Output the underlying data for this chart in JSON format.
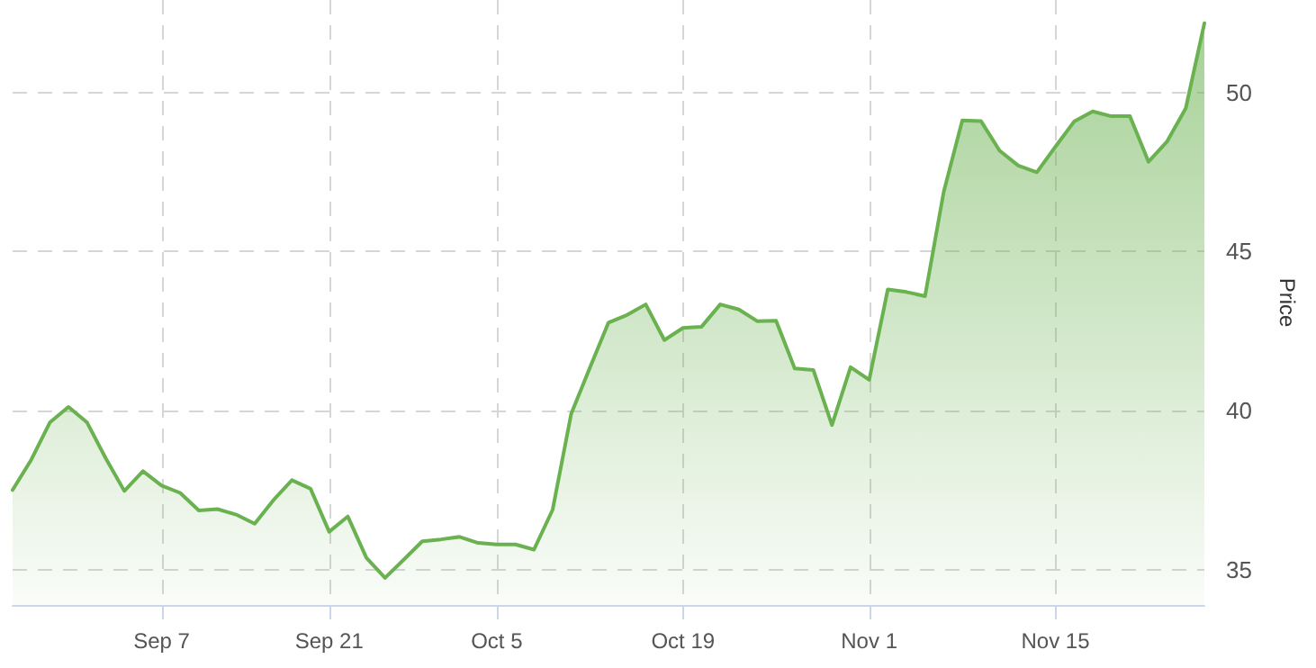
{
  "chart_data": {
    "type": "area",
    "ylabel": "Price",
    "categories": [
      null,
      null,
      null,
      null,
      null,
      null,
      null,
      null,
      "Sep 7",
      null,
      null,
      null,
      null,
      null,
      null,
      null,
      null,
      "Sep 21",
      null,
      null,
      null,
      null,
      null,
      null,
      null,
      null,
      "Oct 5",
      null,
      null,
      null,
      null,
      null,
      null,
      null,
      null,
      null,
      "Oct 19",
      null,
      null,
      null,
      null,
      null,
      null,
      null,
      null,
      null,
      "Nov 1",
      null,
      null,
      null,
      null,
      null,
      null,
      null,
      null,
      null,
      "Nov 15",
      null,
      null,
      null,
      null,
      null,
      null,
      null,
      null
    ],
    "series": [
      {
        "color": "#6ab150",
        "values": [
          37.51,
          38.46,
          39.63,
          40.12,
          39.63,
          38.51,
          37.48,
          38.1,
          37.65,
          37.42,
          36.87,
          36.91,
          36.74,
          36.45,
          37.19,
          37.82,
          37.55,
          36.2,
          36.68,
          35.38,
          34.75,
          35.32,
          35.9,
          35.96,
          36.04,
          35.85,
          35.8,
          35.8,
          35.64,
          36.89,
          39.91,
          41.35,
          42.77,
          43.01,
          43.34,
          42.22,
          42.6,
          42.64,
          43.34,
          43.18,
          42.81,
          42.83,
          41.33,
          41.28,
          39.55,
          41.37,
          40.97,
          43.81,
          43.73,
          43.6,
          46.87,
          49.12,
          49.1,
          48.17,
          47.7,
          47.49,
          48.29,
          49.08,
          49.4,
          49.25,
          49.25,
          47.82,
          48.46,
          49.5,
          52.17
        ]
      }
    ],
    "ylim": [
      33.9,
      52.9
    ],
    "yticks": [
      35,
      40,
      45,
      50
    ],
    "grid": true,
    "marker": "none",
    "line_style": "solid"
  }
}
